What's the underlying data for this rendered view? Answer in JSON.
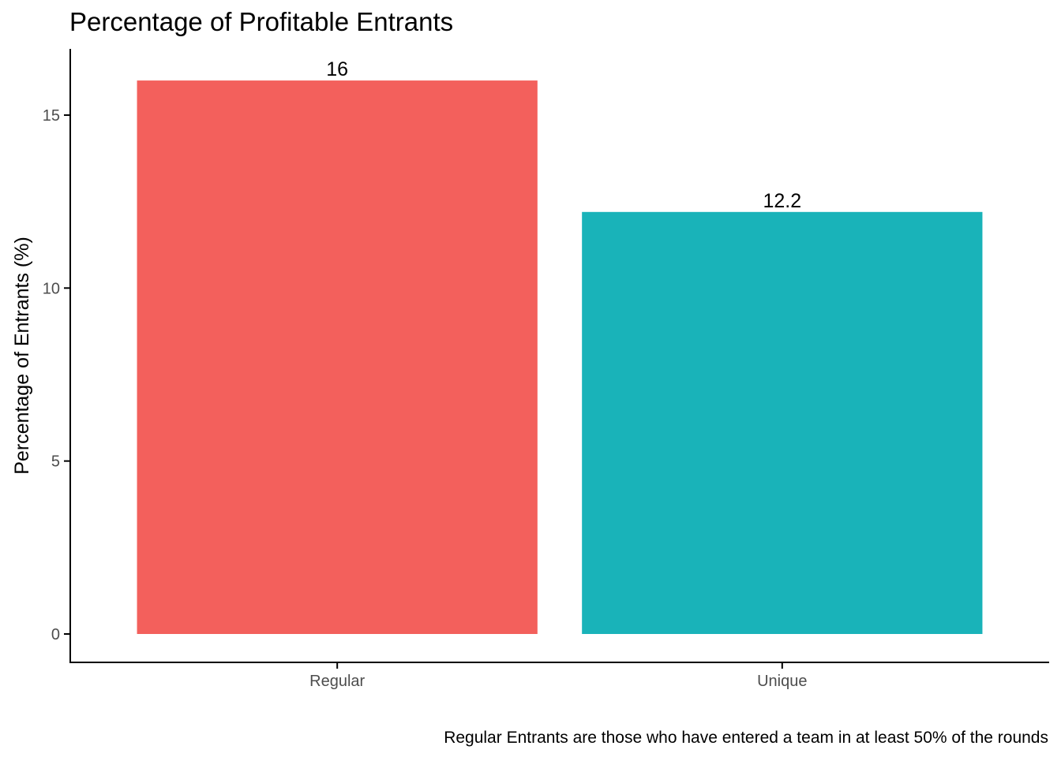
{
  "chart_data": {
    "type": "bar",
    "title": "Percentage of Profitable Entrants",
    "xlabel": "",
    "ylabel": "Percentage of Entrants (%)",
    "categories": [
      "Regular",
      "Unique"
    ],
    "values": [
      16,
      12.2
    ],
    "data_labels": [
      "16",
      "12.2"
    ],
    "colors": [
      "#f3605c",
      "#19b3b9"
    ],
    "ylim": [
      0,
      16.8
    ],
    "yticks": [
      0,
      5,
      10,
      15
    ],
    "ytick_labels": [
      "0",
      "5",
      "10",
      "15"
    ],
    "grid": false,
    "legend": "none",
    "caption": "Regular Entrants are those who have entered a team in at least 50% of the rounds"
  }
}
